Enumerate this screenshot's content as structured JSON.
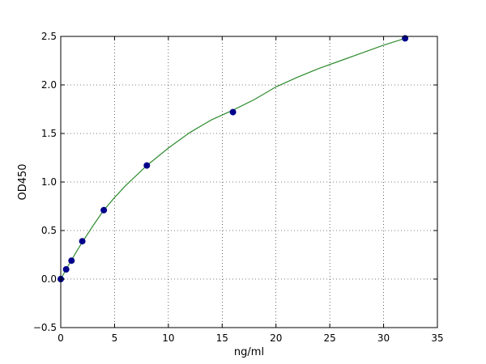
{
  "chart_data": {
    "type": "scatter",
    "title": "",
    "xlabel": "ng/ml",
    "ylabel": "OD450",
    "xlim": [
      0,
      35
    ],
    "ylim": [
      -0.5,
      2.5
    ],
    "x_ticks": [
      0,
      5,
      10,
      15,
      20,
      25,
      30,
      35
    ],
    "y_ticks": [
      -0.5,
      0.0,
      0.5,
      1.0,
      1.5,
      2.0,
      2.5
    ],
    "x_tick_labels": [
      "0",
      "5",
      "10",
      "15",
      "20",
      "25",
      "30",
      "35"
    ],
    "y_tick_labels": [
      "−0.5",
      "0.0",
      "0.5",
      "1.0",
      "1.5",
      "2.0",
      "2.5"
    ],
    "grid": true,
    "legend": "none",
    "series": [
      {
        "kind": "points",
        "color": "#00008b",
        "x": [
          0,
          0.5,
          1,
          2,
          4,
          8,
          16,
          32
        ],
        "y": [
          0.0,
          0.1,
          0.19,
          0.39,
          0.71,
          1.17,
          1.72,
          2.48
        ]
      },
      {
        "kind": "fit-curve",
        "color": "#2e8b2e",
        "x": [
          0,
          0.25,
          0.5,
          1,
          1.5,
          2,
          3,
          4,
          5,
          6,
          8,
          10,
          12,
          14,
          16,
          18,
          20,
          22,
          24,
          26,
          28,
          30,
          32
        ],
        "y": [
          0.0,
          0.05,
          0.1,
          0.195,
          0.29,
          0.38,
          0.55,
          0.71,
          0.84,
          0.96,
          1.17,
          1.35,
          1.51,
          1.64,
          1.74,
          1.85,
          1.98,
          2.08,
          2.17,
          2.25,
          2.33,
          2.41,
          2.48
        ]
      }
    ]
  }
}
